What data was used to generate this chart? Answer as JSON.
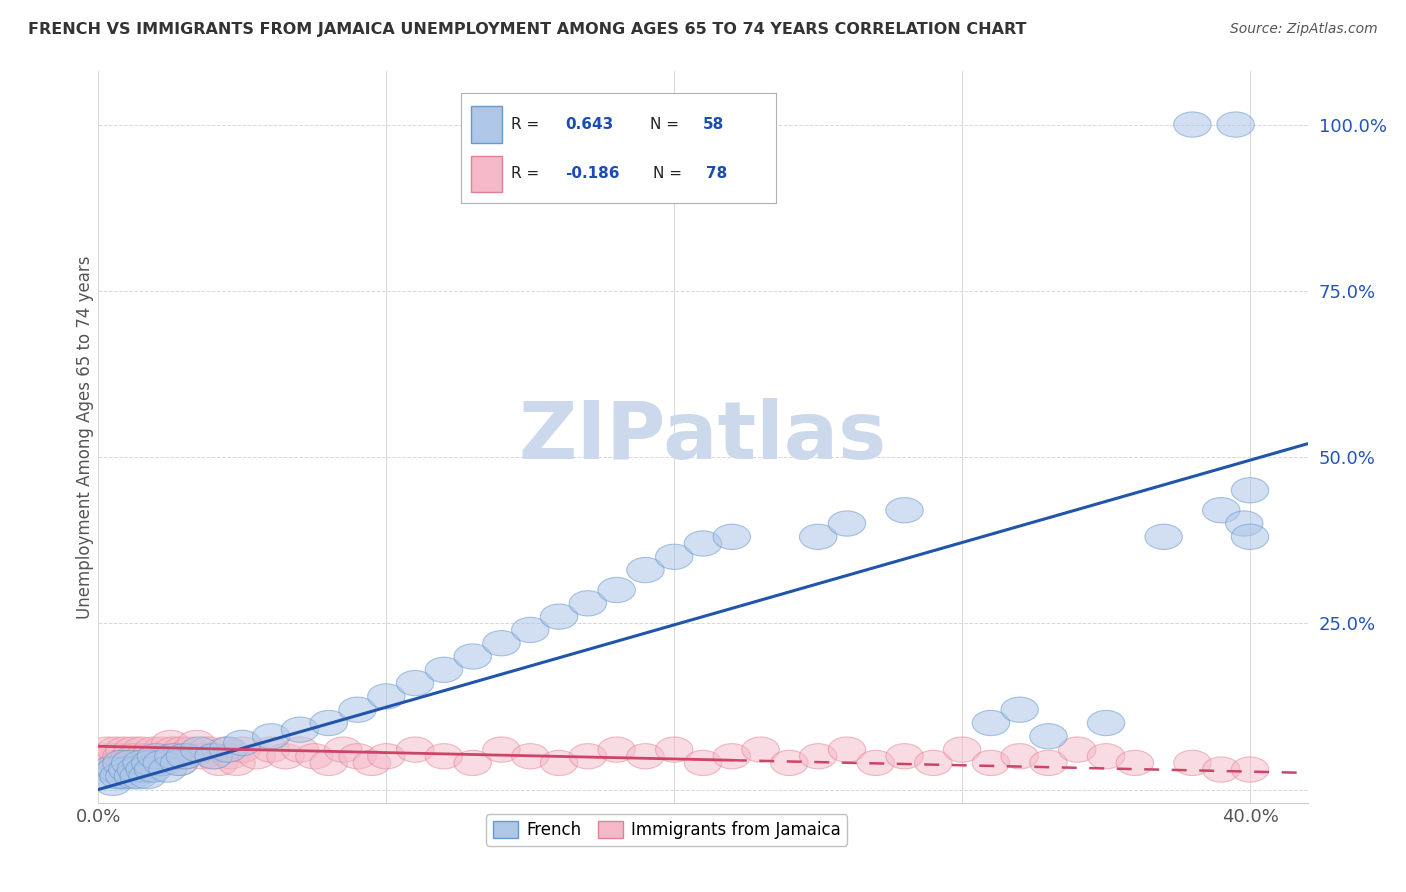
{
  "title": "FRENCH VS IMMIGRANTS FROM JAMAICA UNEMPLOYMENT AMONG AGES 65 TO 74 YEARS CORRELATION CHART",
  "source": "Source: ZipAtlas.com",
  "ylabel": "Unemployment Among Ages 65 to 74 years",
  "xlim": [
    0.0,
    0.42
  ],
  "ylim": [
    -0.02,
    1.08
  ],
  "xticks": [
    0.0,
    0.1,
    0.2,
    0.3,
    0.4
  ],
  "xtick_labels": [
    "0.0%",
    "",
    "",
    "",
    "40.0%"
  ],
  "yticks": [
    0.0,
    0.25,
    0.5,
    0.75,
    1.0
  ],
  "ytick_labels": [
    "",
    "25.0%",
    "50.0%",
    "75.0%",
    "100.0%"
  ],
  "french_R": 0.643,
  "french_N": 58,
  "immigrant_R": -0.186,
  "immigrant_N": 78,
  "blue_fill": "#aec6e8",
  "blue_edge": "#6699cc",
  "pink_fill": "#f5b8c8",
  "pink_edge": "#e08090",
  "blue_line_color": "#2255aa",
  "pink_line_color": "#cc4466",
  "watermark_color": "#ccd8ec",
  "background_color": "#ffffff",
  "grid_color": "#d8d8d8",
  "title_color": "#333333",
  "label_color": "#555555",
  "french_x_data": [
    0.002,
    0.004,
    0.005,
    0.006,
    0.007,
    0.008,
    0.009,
    0.01,
    0.011,
    0.012,
    0.013,
    0.014,
    0.015,
    0.016,
    0.017,
    0.018,
    0.019,
    0.02,
    0.022,
    0.024,
    0.026,
    0.028,
    0.03,
    0.035,
    0.04,
    0.045,
    0.05,
    0.06,
    0.07,
    0.08,
    0.09,
    0.1,
    0.11,
    0.12,
    0.13,
    0.14,
    0.15,
    0.16,
    0.17,
    0.18,
    0.19,
    0.2,
    0.21,
    0.22,
    0.25,
    0.26,
    0.28,
    0.31,
    0.32,
    0.33,
    0.35,
    0.37,
    0.38,
    0.39,
    0.395,
    0.398,
    0.4,
    0.4
  ],
  "french_y_data": [
    0.02,
    0.03,
    0.01,
    0.03,
    0.02,
    0.04,
    0.02,
    0.03,
    0.04,
    0.02,
    0.03,
    0.02,
    0.04,
    0.03,
    0.02,
    0.04,
    0.03,
    0.05,
    0.04,
    0.03,
    0.05,
    0.04,
    0.05,
    0.06,
    0.05,
    0.06,
    0.07,
    0.08,
    0.09,
    0.1,
    0.12,
    0.14,
    0.16,
    0.18,
    0.2,
    0.22,
    0.24,
    0.26,
    0.28,
    0.3,
    0.33,
    0.35,
    0.37,
    0.38,
    0.38,
    0.4,
    0.42,
    0.1,
    0.12,
    0.08,
    0.1,
    0.38,
    1.0,
    0.42,
    1.0,
    0.4,
    0.45,
    0.38
  ],
  "immigrant_x_data": [
    0.002,
    0.003,
    0.004,
    0.005,
    0.006,
    0.007,
    0.008,
    0.009,
    0.01,
    0.011,
    0.012,
    0.013,
    0.014,
    0.015,
    0.016,
    0.017,
    0.018,
    0.019,
    0.02,
    0.021,
    0.022,
    0.023,
    0.024,
    0.025,
    0.026,
    0.027,
    0.028,
    0.029,
    0.03,
    0.032,
    0.034,
    0.036,
    0.038,
    0.04,
    0.042,
    0.044,
    0.046,
    0.048,
    0.05,
    0.055,
    0.06,
    0.065,
    0.07,
    0.075,
    0.08,
    0.085,
    0.09,
    0.095,
    0.1,
    0.11,
    0.12,
    0.13,
    0.14,
    0.15,
    0.16,
    0.17,
    0.18,
    0.19,
    0.2,
    0.21,
    0.22,
    0.23,
    0.24,
    0.25,
    0.26,
    0.27,
    0.28,
    0.29,
    0.3,
    0.31,
    0.32,
    0.33,
    0.34,
    0.35,
    0.36,
    0.38,
    0.39,
    0.4
  ],
  "immigrant_y_data": [
    0.05,
    0.06,
    0.04,
    0.05,
    0.06,
    0.04,
    0.05,
    0.06,
    0.04,
    0.05,
    0.06,
    0.05,
    0.04,
    0.06,
    0.05,
    0.04,
    0.05,
    0.06,
    0.04,
    0.05,
    0.06,
    0.04,
    0.05,
    0.07,
    0.06,
    0.05,
    0.04,
    0.06,
    0.05,
    0.06,
    0.07,
    0.05,
    0.06,
    0.05,
    0.04,
    0.06,
    0.05,
    0.04,
    0.06,
    0.05,
    0.06,
    0.05,
    0.06,
    0.05,
    0.04,
    0.06,
    0.05,
    0.04,
    0.05,
    0.06,
    0.05,
    0.04,
    0.06,
    0.05,
    0.04,
    0.05,
    0.06,
    0.05,
    0.06,
    0.04,
    0.05,
    0.06,
    0.04,
    0.05,
    0.06,
    0.04,
    0.05,
    0.04,
    0.06,
    0.04,
    0.05,
    0.04,
    0.06,
    0.05,
    0.04,
    0.04,
    0.03,
    0.03
  ],
  "french_line_x": [
    0.0,
    0.42
  ],
  "french_line_y": [
    0.0,
    0.52
  ],
  "imm_line_x": [
    0.0,
    0.42
  ],
  "imm_line_y": [
    0.065,
    0.025
  ]
}
